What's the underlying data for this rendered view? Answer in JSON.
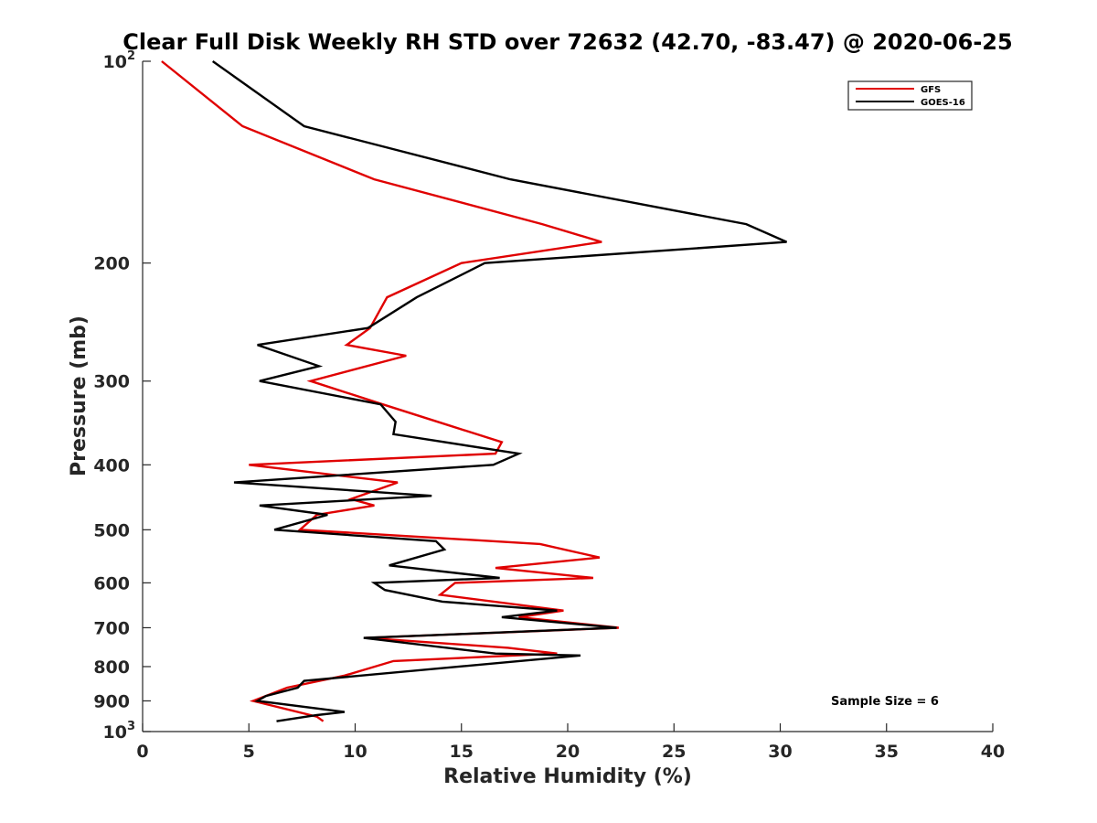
{
  "chart_data": {
    "type": "line",
    "title": "Clear Full Disk Weekly RH STD over 72632 (42.70, -83.47) @ 2020-06-25",
    "xlabel": "Relative Humidity (%)",
    "ylabel": "Pressure (mb)",
    "xlim": [
      0,
      40
    ],
    "ylim": [
      100,
      1000
    ],
    "y_scale": "log",
    "y_reversed": true,
    "x_ticks": [
      0,
      5,
      10,
      15,
      20,
      25,
      30,
      35,
      40
    ],
    "y_ticks": [
      {
        "value": 100,
        "label": "10",
        "sup": "2"
      },
      {
        "value": 200,
        "label": "200"
      },
      {
        "value": 300,
        "label": "300"
      },
      {
        "value": 400,
        "label": "400"
      },
      {
        "value": 500,
        "label": "500"
      },
      {
        "value": 600,
        "label": "600"
      },
      {
        "value": 700,
        "label": "700"
      },
      {
        "value": 800,
        "label": "800"
      },
      {
        "value": 900,
        "label": "900"
      },
      {
        "value": 1000,
        "label": "10",
        "sup": "3"
      }
    ],
    "grid": false,
    "legend_position": "top-right",
    "annotation": "Sample Size = 6",
    "series": [
      {
        "name": "GFS",
        "color": "#e00000",
        "points": [
          [
            0.9,
            100
          ],
          [
            4.7,
            125
          ],
          [
            10.9,
            150
          ],
          [
            18.8,
            175
          ],
          [
            21.6,
            186
          ],
          [
            15.0,
            200
          ],
          [
            11.5,
            225
          ],
          [
            10.7,
            250
          ],
          [
            9.6,
            265
          ],
          [
            12.4,
            275
          ],
          [
            7.9,
            300
          ],
          [
            11.3,
            325
          ],
          [
            14.5,
            350
          ],
          [
            16.9,
            370
          ],
          [
            16.6,
            385
          ],
          [
            5.0,
            400
          ],
          [
            12.0,
            425
          ],
          [
            9.8,
            450
          ],
          [
            10.9,
            460
          ],
          [
            8.2,
            475
          ],
          [
            7.4,
            500
          ],
          [
            18.7,
            525
          ],
          [
            21.5,
            550
          ],
          [
            16.6,
            570
          ],
          [
            21.2,
            590
          ],
          [
            14.7,
            600
          ],
          [
            14.0,
            625
          ],
          [
            19.8,
            660
          ],
          [
            17.7,
            675
          ],
          [
            22.4,
            700
          ],
          [
            10.5,
            725
          ],
          [
            17.2,
            750
          ],
          [
            19.5,
            765
          ],
          [
            11.8,
            785
          ],
          [
            9.5,
            825
          ],
          [
            6.8,
            860
          ],
          [
            5.2,
            900
          ],
          [
            8.2,
            950
          ],
          [
            8.5,
            965
          ]
        ]
      },
      {
        "name": "GOES-16",
        "color": "#000000",
        "points": [
          [
            3.3,
            100
          ],
          [
            7.6,
            125
          ],
          [
            17.3,
            150
          ],
          [
            28.4,
            175
          ],
          [
            30.3,
            186
          ],
          [
            16.1,
            200
          ],
          [
            12.9,
            225
          ],
          [
            10.6,
            250
          ],
          [
            5.4,
            265
          ],
          [
            8.3,
            285
          ],
          [
            5.5,
            300
          ],
          [
            11.2,
            325
          ],
          [
            11.9,
            345
          ],
          [
            11.8,
            360
          ],
          [
            17.7,
            385
          ],
          [
            16.5,
            400
          ],
          [
            4.3,
            425
          ],
          [
            13.6,
            445
          ],
          [
            5.5,
            460
          ],
          [
            8.7,
            475
          ],
          [
            6.2,
            500
          ],
          [
            13.8,
            520
          ],
          [
            14.2,
            535
          ],
          [
            11.6,
            565
          ],
          [
            16.8,
            590
          ],
          [
            10.9,
            600
          ],
          [
            11.4,
            615
          ],
          [
            14.1,
            640
          ],
          [
            19.5,
            660
          ],
          [
            16.9,
            675
          ],
          [
            22.3,
            700
          ],
          [
            10.4,
            725
          ],
          [
            16.6,
            765
          ],
          [
            20.6,
            770
          ],
          [
            7.6,
            840
          ],
          [
            7.3,
            860
          ],
          [
            5.8,
            885
          ],
          [
            5.4,
            900
          ],
          [
            9.5,
            935
          ],
          [
            8.2,
            945
          ],
          [
            6.3,
            965
          ]
        ]
      }
    ]
  }
}
